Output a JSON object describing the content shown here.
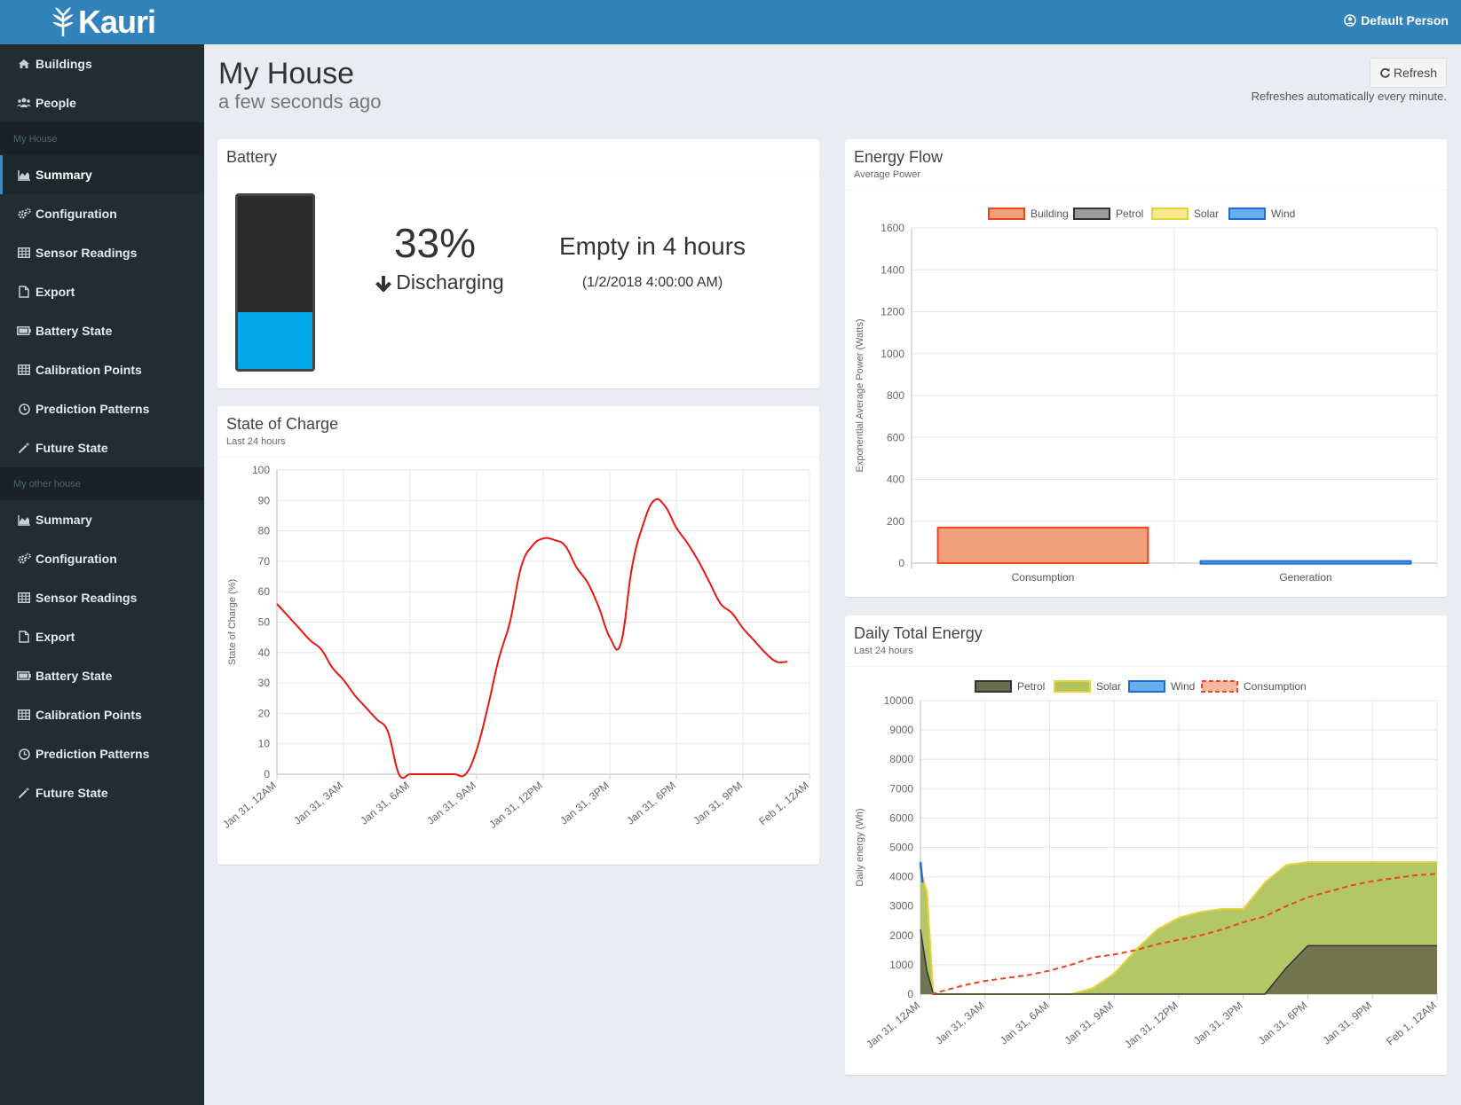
{
  "app": {
    "brand": "Kauri",
    "user_name": "Default Person"
  },
  "sidebar": {
    "top_items": [
      {
        "label": "Buildings",
        "icon": "home-icon"
      },
      {
        "label": "People",
        "icon": "users-icon"
      }
    ],
    "groups": [
      {
        "header": "My House",
        "items": [
          {
            "label": "Summary",
            "icon": "area-chart-icon",
            "active": true
          },
          {
            "label": "Configuration",
            "icon": "cogs-icon"
          },
          {
            "label": "Sensor Readings",
            "icon": "table-icon"
          },
          {
            "label": "Export",
            "icon": "file-icon"
          },
          {
            "label": "Battery State",
            "icon": "battery-icon"
          },
          {
            "label": "Calibration Points",
            "icon": "table-icon"
          },
          {
            "label": "Prediction Patterns",
            "icon": "clock-icon"
          },
          {
            "label": "Future State",
            "icon": "magic-wand-icon"
          }
        ]
      },
      {
        "header": "My other house",
        "items": [
          {
            "label": "Summary",
            "icon": "area-chart-icon"
          },
          {
            "label": "Configuration",
            "icon": "cogs-icon"
          },
          {
            "label": "Sensor Readings",
            "icon": "table-icon"
          },
          {
            "label": "Export",
            "icon": "file-icon"
          },
          {
            "label": "Battery State",
            "icon": "battery-icon"
          },
          {
            "label": "Calibration Points",
            "icon": "table-icon"
          },
          {
            "label": "Prediction Patterns",
            "icon": "clock-icon"
          },
          {
            "label": "Future State",
            "icon": "magic-wand-icon"
          }
        ]
      }
    ]
  },
  "page": {
    "title": "My House",
    "subtitle": "a few seconds ago",
    "refresh_label": "Refresh",
    "refresh_note": "Refreshes automatically every minute."
  },
  "battery": {
    "title": "Battery",
    "percent_label": "33%",
    "level": 0.33,
    "status": "Discharging",
    "empty_label": "Empty in 4 hours",
    "empty_date": "(1/2/2018 4:00:00 AM)"
  },
  "colors": {
    "accent": "#3283bb",
    "sidebar_bg": "#222d32",
    "battery_fill": "#00a8e8",
    "building": "#f0a17b",
    "petrol": "#7b7b6b",
    "solar": "#b0c45e",
    "wind": "#6aaef0"
  },
  "chart_data": [
    {
      "id": "state_of_charge",
      "type": "line",
      "title": "State of Charge",
      "subtitle": "Last 24 hours",
      "ylabel": "State of Charge (%)",
      "ylim": [
        0,
        100
      ],
      "yticks": [
        0,
        10,
        20,
        30,
        40,
        50,
        60,
        70,
        80,
        90,
        100
      ],
      "xticks": [
        "Jan 31, 12AM",
        "Jan 31, 3AM",
        "Jan 31, 6AM",
        "Jan 31, 9AM",
        "Jan 31, 12PM",
        "Jan 31, 3PM",
        "Jan 31, 6PM",
        "Jan 31, 9PM",
        "Feb 1, 12AM"
      ],
      "x_hours": [
        0,
        0.5,
        1,
        1.5,
        2,
        2.5,
        3,
        3.5,
        4,
        4.5,
        5,
        5.5,
        6,
        6.5,
        7,
        7.5,
        8,
        8.5,
        9,
        9.5,
        10,
        10.5,
        11,
        11.5,
        12,
        12.5,
        13,
        13.5,
        14,
        14.5,
        15,
        15.5,
        16,
        16.5,
        17,
        17.5,
        18,
        18.5,
        19,
        19.5,
        20,
        20.5,
        21,
        21.5,
        22,
        22.5,
        23,
        23.5
      ],
      "values": [
        56,
        52,
        48,
        44,
        41,
        35,
        31,
        26,
        22,
        18,
        14,
        0,
        0,
        0,
        0,
        0,
        0,
        0,
        8,
        22,
        38,
        50,
        68,
        75,
        77.5,
        77,
        75,
        68,
        63,
        55,
        45,
        43,
        68,
        82,
        90,
        88,
        81,
        76,
        70,
        63,
        56,
        53,
        48,
        44,
        40,
        37,
        37,
        37
      ],
      "color": "#e8170f"
    },
    {
      "id": "energy_flow",
      "type": "bar",
      "title": "Energy Flow",
      "subtitle": "Average Power",
      "ylabel": "Exponential Average Power (Watts)",
      "ylim": [
        0,
        1600
      ],
      "yticks": [
        0,
        200,
        400,
        600,
        800,
        1000,
        1200,
        1400,
        1600
      ],
      "categories": [
        "Consumption",
        "Generation"
      ],
      "series": [
        {
          "name": "Building",
          "values": [
            170,
            0
          ],
          "color": "#f0a17b",
          "border": "#e8471f"
        },
        {
          "name": "Petrol",
          "values": [
            0,
            0
          ],
          "color": "#9b9b9b",
          "border": "#333333"
        },
        {
          "name": "Solar",
          "values": [
            0,
            0
          ],
          "color": "#f5e98a",
          "border": "#e6d33a"
        },
        {
          "name": "Wind",
          "values": [
            0,
            10
          ],
          "color": "#6aaef0",
          "border": "#1a6fd0"
        }
      ],
      "legend": "top"
    },
    {
      "id": "daily_total_energy",
      "type": "area",
      "title": "Daily Total Energy",
      "subtitle": "Last 24 hours",
      "ylabel": "Daily energy (Wh)",
      "ylim": [
        0,
        10000
      ],
      "yticks": [
        0,
        1000,
        2000,
        3000,
        4000,
        5000,
        6000,
        7000,
        8000,
        9000,
        10000
      ],
      "xticks": [
        "Jan 31, 12AM",
        "Jan 31, 3AM",
        "Jan 31, 6AM",
        "Jan 31, 9AM",
        "Jan 31, 12PM",
        "Jan 31, 3PM",
        "Jan 31, 6PM",
        "Jan 31, 9PM",
        "Feb 1, 12AM"
      ],
      "legend": "top",
      "series": [
        {
          "name": "Petrol",
          "color": "#6b6b4e",
          "border": "#333333",
          "x_hours": [
            0,
            0.3,
            0.6,
            1,
            3,
            6,
            9,
            12,
            14,
            15,
            16,
            17,
            18,
            21,
            24
          ],
          "values": [
            2200,
            800,
            0,
            0,
            0,
            0,
            0,
            0,
            0,
            0,
            0,
            900,
            1650,
            1650,
            1650
          ]
        },
        {
          "name": "Solar",
          "color": "#b0c45e",
          "border": "#e6d33a",
          "x_hours": [
            0,
            0.3,
            0.6,
            1,
            3,
            6,
            7,
            8,
            9,
            10,
            11,
            12,
            13,
            14,
            15,
            16,
            17,
            18,
            21,
            24
          ],
          "values": [
            4200,
            3500,
            0,
            0,
            0,
            0,
            0,
            200,
            700,
            1500,
            2200,
            2600,
            2800,
            2900,
            2900,
            3800,
            4400,
            4500,
            4500,
            4500
          ]
        },
        {
          "name": "Wind",
          "color": "#6aaef0",
          "border": "#1a6fd0",
          "x_hours": [
            0,
            0.1
          ],
          "values": [
            4500,
            3800
          ]
        },
        {
          "name": "Consumption",
          "color": "#f0a17b",
          "border": "#e8471f",
          "dashed": true,
          "x_hours": [
            0.5,
            1,
            2,
            3,
            4,
            5,
            6,
            7,
            8,
            9,
            10,
            11,
            12,
            13,
            14,
            15,
            16,
            17,
            18,
            19,
            20,
            21,
            22,
            23,
            24
          ],
          "values": [
            0,
            100,
            300,
            450,
            550,
            650,
            800,
            1000,
            1250,
            1350,
            1500,
            1700,
            1850,
            2000,
            2200,
            2450,
            2650,
            3000,
            3300,
            3500,
            3700,
            3850,
            3950,
            4050,
            4100
          ]
        }
      ]
    }
  ]
}
